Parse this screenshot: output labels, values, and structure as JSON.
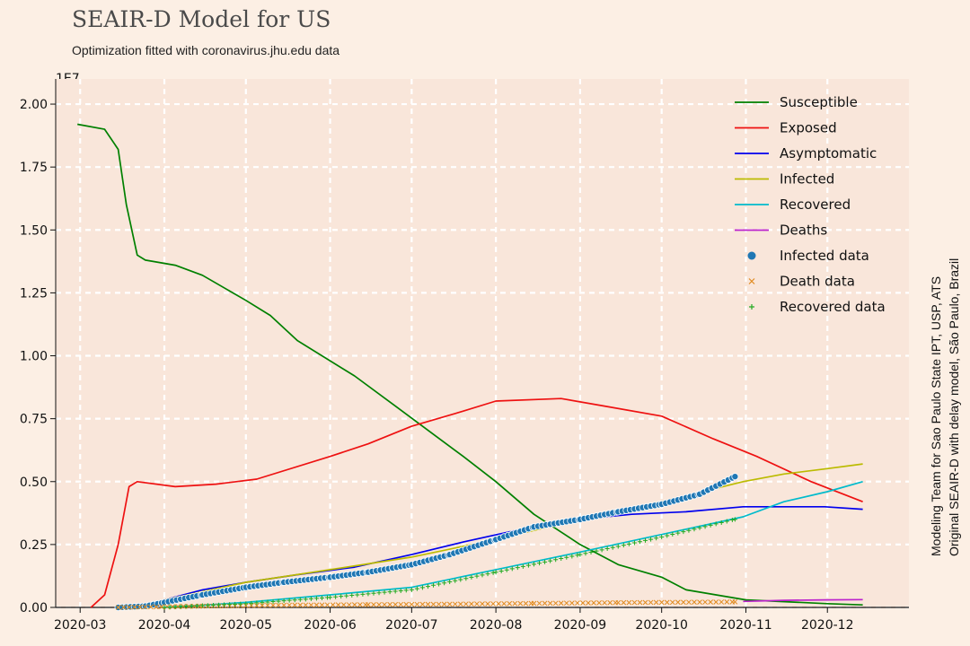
{
  "chart_data": {
    "type": "line",
    "title": "SEAIR-D Model for US",
    "subtitle": "Optimization fitted with coronavirus.jhu.edu data",
    "y_scale_label": "1E7",
    "ylim": [
      0,
      2.1
    ],
    "y_ticks": [
      "0.00",
      "0.25",
      "0.50",
      "0.75",
      "1.00",
      "1.25",
      "1.50",
      "1.75",
      "2.00"
    ],
    "x_ticks": [
      "2020-03",
      "2020-04",
      "2020-05",
      "2020-06",
      "2020-07",
      "2020-08",
      "2020-09",
      "2020-10",
      "2020-11",
      "2020-12"
    ],
    "xlim": [
      "2020-02-21",
      "2020-12-31"
    ],
    "grid": true,
    "legend_position": "top-right",
    "side_text_1": "Modeling Team for Sao Paulo State IPT, USP, ATS",
    "side_text_2": "Original SEAIR-D with delay model, São Paulo, Brazil",
    "series": [
      {
        "name": "Susceptible",
        "kind": "line",
        "color": "#008000",
        "points": [
          [
            "2020-02-29",
            1.92
          ],
          [
            "2020-03-10",
            1.9
          ],
          [
            "2020-03-15",
            1.82
          ],
          [
            "2020-03-18",
            1.6
          ],
          [
            "2020-03-22",
            1.4
          ],
          [
            "2020-03-25",
            1.38
          ],
          [
            "2020-04-05",
            1.36
          ],
          [
            "2020-04-15",
            1.32
          ],
          [
            "2020-05-01",
            1.22
          ],
          [
            "2020-05-10",
            1.16
          ],
          [
            "2020-05-20",
            1.06
          ],
          [
            "2020-06-10",
            0.92
          ],
          [
            "2020-06-25",
            0.8
          ],
          [
            "2020-07-10",
            0.68
          ],
          [
            "2020-07-20",
            0.6
          ],
          [
            "2020-08-01",
            0.5
          ],
          [
            "2020-08-15",
            0.37
          ],
          [
            "2020-09-01",
            0.25
          ],
          [
            "2020-09-15",
            0.17
          ],
          [
            "2020-10-01",
            0.12
          ],
          [
            "2020-10-10",
            0.07
          ],
          [
            "2020-11-01",
            0.03
          ],
          [
            "2020-12-01",
            0.015
          ],
          [
            "2020-12-14",
            0.01
          ]
        ]
      },
      {
        "name": "Exposed",
        "kind": "line",
        "color": "#ee1111",
        "points": [
          [
            "2020-03-05",
            0.0
          ],
          [
            "2020-03-10",
            0.05
          ],
          [
            "2020-03-15",
            0.25
          ],
          [
            "2020-03-19",
            0.48
          ],
          [
            "2020-03-22",
            0.5
          ],
          [
            "2020-04-05",
            0.48
          ],
          [
            "2020-04-20",
            0.49
          ],
          [
            "2020-05-05",
            0.51
          ],
          [
            "2020-06-01",
            0.6
          ],
          [
            "2020-06-15",
            0.65
          ],
          [
            "2020-07-01",
            0.72
          ],
          [
            "2020-07-20",
            0.78
          ],
          [
            "2020-08-01",
            0.82
          ],
          [
            "2020-08-25",
            0.83
          ],
          [
            "2020-09-10",
            0.8
          ],
          [
            "2020-10-01",
            0.76
          ],
          [
            "2020-10-20",
            0.67
          ],
          [
            "2020-11-05",
            0.6
          ],
          [
            "2020-11-25",
            0.5
          ],
          [
            "2020-12-14",
            0.42
          ]
        ]
      },
      {
        "name": "Asymptomatic",
        "kind": "line",
        "color": "#0000ee",
        "points": [
          [
            "2020-03-20",
            0.0
          ],
          [
            "2020-04-01",
            0.03
          ],
          [
            "2020-04-15",
            0.07
          ],
          [
            "2020-05-01",
            0.1
          ],
          [
            "2020-05-20",
            0.13
          ],
          [
            "2020-06-10",
            0.16
          ],
          [
            "2020-07-01",
            0.21
          ],
          [
            "2020-07-20",
            0.26
          ],
          [
            "2020-08-10",
            0.31
          ],
          [
            "2020-09-01",
            0.35
          ],
          [
            "2020-09-20",
            0.37
          ],
          [
            "2020-10-10",
            0.38
          ],
          [
            "2020-10-31",
            0.4
          ],
          [
            "2020-11-15",
            0.4
          ],
          [
            "2020-11-30",
            0.4
          ],
          [
            "2020-12-14",
            0.39
          ]
        ]
      },
      {
        "name": "Infected",
        "kind": "line",
        "color": "#bbbb00",
        "points": [
          [
            "2020-03-20",
            0.0
          ],
          [
            "2020-04-01",
            0.03
          ],
          [
            "2020-05-01",
            0.1
          ],
          [
            "2020-06-01",
            0.15
          ],
          [
            "2020-07-01",
            0.2
          ],
          [
            "2020-08-01",
            0.27
          ],
          [
            "2020-09-01",
            0.35
          ],
          [
            "2020-10-01",
            0.42
          ],
          [
            "2020-10-31",
            0.5
          ],
          [
            "2020-11-15",
            0.53
          ],
          [
            "2020-11-30",
            0.55
          ],
          [
            "2020-12-14",
            0.57
          ]
        ]
      },
      {
        "name": "Recovered",
        "kind": "line",
        "color": "#00bbcc",
        "points": [
          [
            "2020-04-01",
            0.0
          ],
          [
            "2020-05-01",
            0.02
          ],
          [
            "2020-06-01",
            0.05
          ],
          [
            "2020-07-01",
            0.08
          ],
          [
            "2020-08-01",
            0.15
          ],
          [
            "2020-09-01",
            0.22
          ],
          [
            "2020-10-01",
            0.29
          ],
          [
            "2020-10-31",
            0.36
          ],
          [
            "2020-11-15",
            0.42
          ],
          [
            "2020-12-01",
            0.46
          ],
          [
            "2020-12-14",
            0.5
          ]
        ]
      },
      {
        "name": "Deaths",
        "kind": "line",
        "color": "#bb22cc",
        "points": [
          [
            "2020-10-31",
            0.024
          ],
          [
            "2020-11-15",
            0.028
          ],
          [
            "2020-11-30",
            0.03
          ],
          [
            "2020-12-14",
            0.031
          ]
        ]
      },
      {
        "name": "Infected data",
        "kind": "scatter-dot",
        "color": "#1f77b4",
        "points": [
          [
            "2020-03-15",
            0.0
          ],
          [
            "2020-03-25",
            0.005
          ],
          [
            "2020-04-01",
            0.02
          ],
          [
            "2020-04-15",
            0.05
          ],
          [
            "2020-05-01",
            0.08
          ],
          [
            "2020-05-15",
            0.1
          ],
          [
            "2020-06-01",
            0.12
          ],
          [
            "2020-06-15",
            0.14
          ],
          [
            "2020-07-01",
            0.17
          ],
          [
            "2020-07-15",
            0.21
          ],
          [
            "2020-08-01",
            0.27
          ],
          [
            "2020-08-15",
            0.32
          ],
          [
            "2020-09-01",
            0.35
          ],
          [
            "2020-09-15",
            0.38
          ],
          [
            "2020-10-01",
            0.41
          ],
          [
            "2020-10-15",
            0.45
          ],
          [
            "2020-10-28",
            0.52
          ]
        ]
      },
      {
        "name": "Death data",
        "kind": "scatter-x",
        "color": "#e08a1e",
        "points": [
          [
            "2020-03-15",
            0.0
          ],
          [
            "2020-04-15",
            0.005
          ],
          [
            "2020-05-15",
            0.009
          ],
          [
            "2020-06-15",
            0.011
          ],
          [
            "2020-07-15",
            0.013
          ],
          [
            "2020-08-15",
            0.016
          ],
          [
            "2020-09-15",
            0.019
          ],
          [
            "2020-10-15",
            0.021
          ],
          [
            "2020-10-28",
            0.022
          ]
        ]
      },
      {
        "name": "Recovered data",
        "kind": "scatter-plus",
        "color": "#22aa22",
        "points": [
          [
            "2020-04-01",
            0.0
          ],
          [
            "2020-05-01",
            0.015
          ],
          [
            "2020-06-01",
            0.04
          ],
          [
            "2020-07-01",
            0.07
          ],
          [
            "2020-08-01",
            0.14
          ],
          [
            "2020-09-01",
            0.21
          ],
          [
            "2020-10-01",
            0.28
          ],
          [
            "2020-10-28",
            0.35
          ]
        ]
      }
    ]
  }
}
